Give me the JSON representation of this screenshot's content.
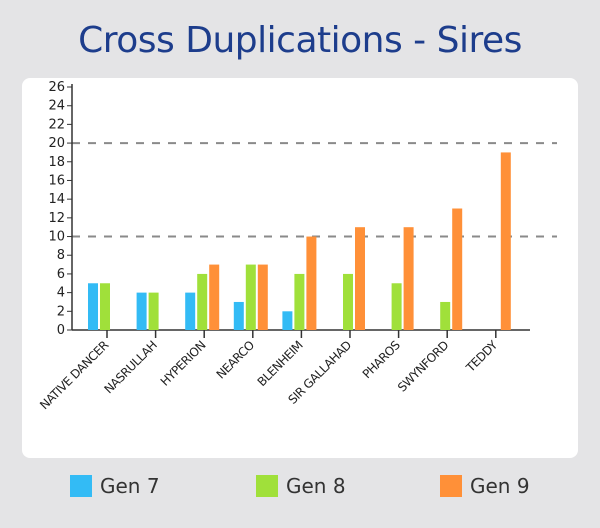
{
  "chart_data": {
    "type": "bar",
    "title": "Cross Duplications - Sires",
    "categories": [
      "NATIVE DANCER",
      "NASRULLAH",
      "HYPERION",
      "NEARCO",
      "BLENHEIM",
      "SIR GALLAHAD",
      "PHAROS",
      "SWYNFORD",
      "TEDDY"
    ],
    "series": [
      {
        "name": "Gen 7",
        "color": "#33bbf5",
        "values": [
          5,
          4,
          4,
          3,
          2,
          0,
          0,
          0,
          0
        ]
      },
      {
        "name": "Gen 8",
        "color": "#a0e03a",
        "values": [
          5,
          4,
          6,
          7,
          6,
          6,
          5,
          3,
          0
        ]
      },
      {
        "name": "Gen 9",
        "color": "#ff9038",
        "values": [
          0,
          0,
          7,
          7,
          10,
          11,
          11,
          13,
          19
        ]
      }
    ],
    "yticks": [
      0,
      2,
      4,
      6,
      8,
      10,
      12,
      14,
      16,
      18,
      20,
      22,
      24,
      26
    ],
    "ylim": [
      0,
      26
    ],
    "reference_lines": [
      10,
      20
    ],
    "grid": false,
    "legend_position": "bottom"
  }
}
